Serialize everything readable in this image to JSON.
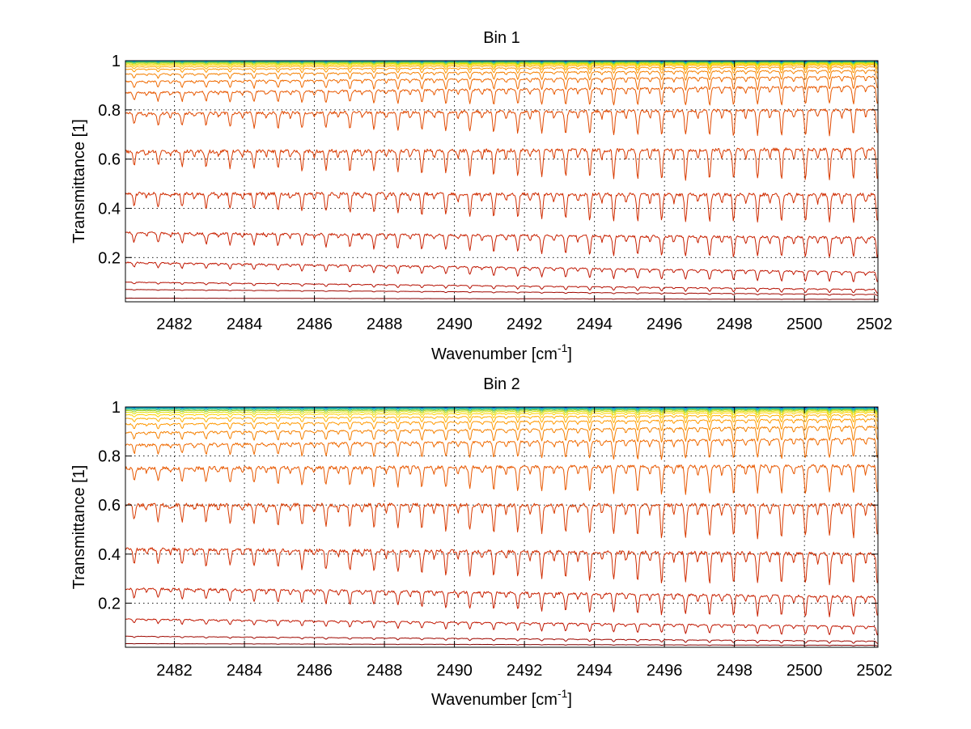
{
  "chart_data": [
    {
      "type": "line",
      "title": "Bin 1",
      "xlabel": "Wavenumber [cm",
      "xlabel_superscript": "-1",
      "xlabel_suffix": "]",
      "ylabel": "Transmittance [1]",
      "xlim": [
        2480.6,
        2502.1
      ],
      "ylim": [
        0.02,
        1.0
      ],
      "xticks": [
        2482,
        2484,
        2486,
        2488,
        2490,
        2492,
        2494,
        2496,
        2498,
        2500,
        2502
      ],
      "xtick_labels": [
        "2482",
        "2484",
        "2486",
        "2488",
        "2490",
        "2492",
        "2494",
        "2496",
        "2498",
        "2500",
        "2502"
      ],
      "yticks": [
        0.2,
        0.4,
        0.6,
        0.8,
        1
      ],
      "ytick_labels": [
        "0.2",
        "0.4",
        "0.6",
        "0.8",
        "1"
      ],
      "grid": true,
      "legend": "none",
      "line_spacing_cm1": 0.685,
      "series": [
        {
          "color": "#000080",
          "baseline": [
            1.0,
            1.0
          ],
          "dip_depth": 0.002
        },
        {
          "color": "#0050d0",
          "baseline": [
            0.999,
            0.998
          ],
          "dip_depth": 0.003
        },
        {
          "color": "#00a0e0",
          "baseline": [
            0.998,
            0.997
          ],
          "dip_depth": 0.004
        },
        {
          "color": "#10b0a0",
          "baseline": [
            0.996,
            0.996
          ],
          "dip_depth": 0.005
        },
        {
          "color": "#50c060",
          "baseline": [
            0.994,
            0.994
          ],
          "dip_depth": 0.006
        },
        {
          "color": "#a0d020",
          "baseline": [
            0.991,
            0.992
          ],
          "dip_depth": 0.008
        },
        {
          "color": "#e0e000",
          "baseline": [
            0.987,
            0.99
          ],
          "dip_depth": 0.01
        },
        {
          "color": "#ffd000",
          "baseline": [
            0.982,
            0.987
          ],
          "dip_depth": 0.014
        },
        {
          "color": "#ffb000",
          "baseline": [
            0.975,
            0.983
          ],
          "dip_depth": 0.018
        },
        {
          "color": "#ff9800",
          "baseline": [
            0.965,
            0.975
          ],
          "dip_depth": 0.024
        },
        {
          "color": "#f58000",
          "baseline": [
            0.945,
            0.96
          ],
          "dip_depth": 0.035
        },
        {
          "color": "#f06a00",
          "baseline": [
            0.915,
            0.935
          ],
          "dip_depth": 0.05
        },
        {
          "color": "#e85800",
          "baseline": [
            0.87,
            0.895
          ],
          "dip_depth": 0.07
        },
        {
          "color": "#e04800",
          "baseline": [
            0.785,
            0.8
          ],
          "dip_depth": 0.1
        },
        {
          "color": "#d83a00",
          "baseline": [
            0.63,
            0.64
          ],
          "dip_depth": 0.12
        },
        {
          "color": "#d02c00",
          "baseline": [
            0.46,
            0.455
          ],
          "dip_depth": 0.11
        },
        {
          "color": "#c82000",
          "baseline": [
            0.3,
            0.28
          ],
          "dip_depth": 0.08
        },
        {
          "color": "#c01600",
          "baseline": [
            0.18,
            0.14
          ],
          "dip_depth": 0.04
        },
        {
          "color": "#b40e00",
          "baseline": [
            0.1,
            0.07
          ],
          "dip_depth": 0.015
        },
        {
          "color": "#a00800",
          "baseline": [
            0.07,
            0.05
          ],
          "dip_depth": 0.005
        },
        {
          "color": "#800000",
          "baseline": [
            0.035,
            0.03
          ],
          "dip_depth": 0.001
        }
      ]
    },
    {
      "type": "line",
      "title": "Bin 2",
      "xlabel": "Wavenumber [cm",
      "xlabel_superscript": "-1",
      "xlabel_suffix": "]",
      "ylabel": "Transmittance [1]",
      "xlim": [
        2480.6,
        2502.1
      ],
      "ylim": [
        0.02,
        1.0
      ],
      "xticks": [
        2482,
        2484,
        2486,
        2488,
        2490,
        2492,
        2494,
        2496,
        2498,
        2500,
        2502
      ],
      "xtick_labels": [
        "2482",
        "2484",
        "2486",
        "2488",
        "2490",
        "2492",
        "2494",
        "2496",
        "2498",
        "2500",
        "2502"
      ],
      "yticks": [
        0.2,
        0.4,
        0.6,
        0.8,
        1
      ],
      "ytick_labels": [
        "0.2",
        "0.4",
        "0.6",
        "0.8",
        "1"
      ],
      "grid": true,
      "legend": "none",
      "line_spacing_cm1": 0.685,
      "series": [
        {
          "color": "#000080",
          "baseline": [
            1.0,
            1.0
          ],
          "dip_depth": 0.002
        },
        {
          "color": "#0050d0",
          "baseline": [
            0.999,
            0.998
          ],
          "dip_depth": 0.003
        },
        {
          "color": "#00a0e0",
          "baseline": [
            0.997,
            0.996
          ],
          "dip_depth": 0.004
        },
        {
          "color": "#10b0a0",
          "baseline": [
            0.994,
            0.994
          ],
          "dip_depth": 0.006
        },
        {
          "color": "#50c060",
          "baseline": [
            0.99,
            0.991
          ],
          "dip_depth": 0.008
        },
        {
          "color": "#a0d020",
          "baseline": [
            0.985,
            0.988
          ],
          "dip_depth": 0.011
        },
        {
          "color": "#e0e000",
          "baseline": [
            0.978,
            0.984
          ],
          "dip_depth": 0.015
        },
        {
          "color": "#ffd000",
          "baseline": [
            0.968,
            0.978
          ],
          "dip_depth": 0.02
        },
        {
          "color": "#ffb000",
          "baseline": [
            0.953,
            0.968
          ],
          "dip_depth": 0.028
        },
        {
          "color": "#ff9800",
          "baseline": [
            0.93,
            0.95
          ],
          "dip_depth": 0.04
        },
        {
          "color": "#f58000",
          "baseline": [
            0.895,
            0.92
          ],
          "dip_depth": 0.055
        },
        {
          "color": "#f06a00",
          "baseline": [
            0.845,
            0.87
          ],
          "dip_depth": 0.075
        },
        {
          "color": "#e85800",
          "baseline": [
            0.75,
            0.76
          ],
          "dip_depth": 0.11
        },
        {
          "color": "#d83a00",
          "baseline": [
            0.6,
            0.6
          ],
          "dip_depth": 0.13
        },
        {
          "color": "#d02c00",
          "baseline": [
            0.42,
            0.4
          ],
          "dip_depth": 0.12
        },
        {
          "color": "#c82000",
          "baseline": [
            0.26,
            0.225
          ],
          "dip_depth": 0.08
        },
        {
          "color": "#c01600",
          "baseline": [
            0.135,
            0.105
          ],
          "dip_depth": 0.035
        },
        {
          "color": "#a00800",
          "baseline": [
            0.065,
            0.045
          ],
          "dip_depth": 0.01
        },
        {
          "color": "#800000",
          "baseline": [
            0.035,
            0.028
          ],
          "dip_depth": 0.002
        }
      ]
    }
  ]
}
